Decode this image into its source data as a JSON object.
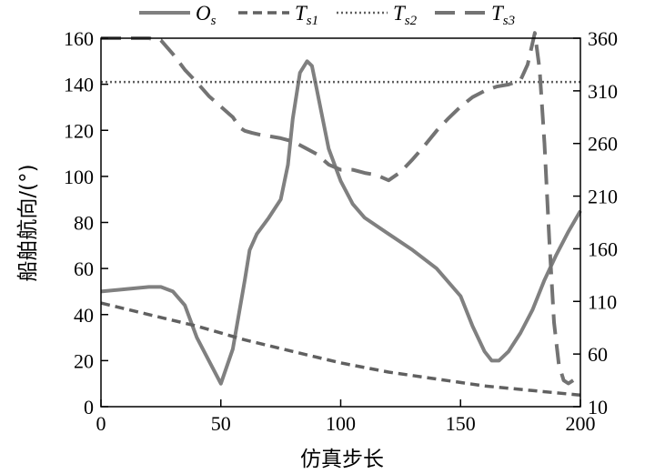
{
  "chart_data": {
    "type": "line",
    "title": "",
    "xlabel": "仿真步长",
    "ylabel": "船舶航向/(°)",
    "xlim": [
      0,
      200
    ],
    "ylim": [
      0,
      160
    ],
    "y2lim": [
      10,
      360
    ],
    "x_ticks": [
      "0",
      "50",
      "100",
      "150",
      "200"
    ],
    "y_ticks": [
      "0",
      "20",
      "40",
      "60",
      "80",
      "100",
      "120",
      "140",
      "160"
    ],
    "y2_ticks": [
      "10",
      "60",
      "110",
      "160",
      "210",
      "260",
      "310",
      "360"
    ],
    "grid": false,
    "legend_position": "top",
    "legend": [
      {
        "main": "O",
        "sub": "s"
      },
      {
        "main": "T",
        "sub": "s1"
      },
      {
        "main": "T",
        "sub": "s2"
      },
      {
        "main": "T",
        "sub": "s3"
      }
    ],
    "series": [
      {
        "axis": "left",
        "style": "solid",
        "color": "#808080",
        "x": [
          0,
          10,
          20,
          25,
          30,
          35,
          40,
          45,
          50,
          55,
          60,
          62,
          65,
          70,
          75,
          78,
          80,
          83,
          86,
          88,
          90,
          95,
          100,
          105,
          110,
          120,
          130,
          140,
          150,
          155,
          160,
          163,
          166,
          170,
          175,
          180,
          185,
          190,
          195,
          200
        ],
        "y": [
          50,
          51,
          52,
          52,
          50,
          44,
          30,
          20,
          10,
          25,
          55,
          68,
          75,
          82,
          90,
          105,
          125,
          145,
          150,
          148,
          138,
          112,
          98,
          88,
          82,
          75,
          68,
          60,
          48,
          35,
          24,
          20,
          20,
          24,
          32,
          42,
          55,
          66,
          76,
          85
        ]
      },
      {
        "axis": "left",
        "style": "dashed",
        "color": "#606060",
        "x": [
          0,
          20,
          40,
          60,
          80,
          100,
          120,
          140,
          160,
          180,
          200
        ],
        "y": [
          45,
          40,
          35,
          29,
          24,
          19,
          15,
          12,
          9,
          7,
          5
        ]
      },
      {
        "axis": "left",
        "style": "dotted",
        "color": "#606060",
        "x": [
          0,
          200
        ],
        "y": [
          141,
          141
        ]
      },
      {
        "axis": "right",
        "style": "long-dashed",
        "color": "#737373",
        "x": [
          0,
          10,
          20,
          25,
          30,
          35,
          40,
          45,
          50,
          55,
          58,
          60,
          63,
          67,
          70,
          75,
          80,
          85,
          90,
          95,
          100,
          105,
          110,
          115,
          120,
          125,
          130,
          135,
          140,
          145,
          150,
          155,
          160,
          165,
          170,
          175,
          178,
          181,
          183,
          185,
          187,
          189,
          191,
          193,
          195,
          197
        ],
        "y": [
          360,
          360,
          360,
          358,
          345,
          330,
          318,
          305,
          295,
          285,
          275,
          272,
          270,
          268,
          267,
          265,
          262,
          256,
          250,
          240,
          235,
          235,
          232,
          230,
          225,
          233,
          245,
          258,
          272,
          284,
          295,
          304,
          310,
          314,
          316,
          320,
          335,
          365,
          330,
          260,
          170,
          90,
          50,
          35,
          32,
          35
        ]
      }
    ]
  }
}
